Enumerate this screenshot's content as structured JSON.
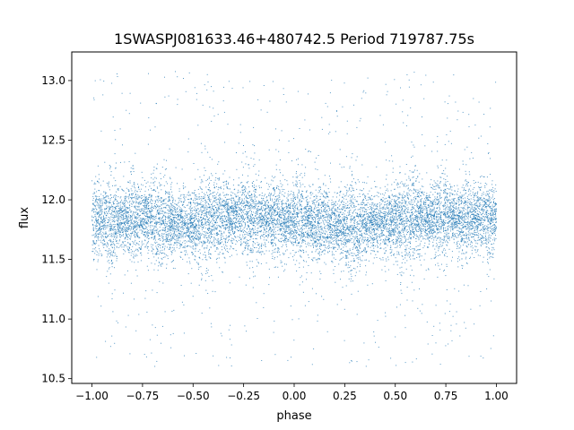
{
  "chart_data": {
    "type": "scatter",
    "title": "1SWASPJ081633.46+480742.5 Period 719787.75s",
    "xlabel": "phase",
    "ylabel": "flux",
    "xlim": [
      -1.1,
      1.1
    ],
    "ylim": [
      10.46,
      13.24
    ],
    "x_ticks": [
      -1.0,
      -0.75,
      -0.5,
      -0.25,
      0.0,
      0.25,
      0.5,
      0.75,
      1.0
    ],
    "x_tick_labels": [
      "−1.00",
      "−0.75",
      "−0.50",
      "−0.25",
      "0.00",
      "0.25",
      "0.50",
      "0.75",
      "1.00"
    ],
    "y_ticks": [
      10.5,
      11.0,
      11.5,
      12.0,
      12.5,
      13.0
    ],
    "y_tick_labels": [
      "10.5",
      "11.0",
      "11.5",
      "12.0",
      "12.5",
      "13.0"
    ],
    "grid": false,
    "legend": "none",
    "marker_color": "#1f77b4",
    "series": [
      {
        "x_range": [
          -1.0,
          1.0
        ],
        "points_per_visible_cloud": "dense",
        "mean_flux_profile": {
          "x": [
            -1.0,
            -0.75,
            -0.5,
            -0.25,
            0.0,
            0.25,
            0.5,
            0.75,
            1.0
          ],
          "y": [
            11.82,
            11.85,
            11.8,
            11.87,
            11.82,
            11.78,
            11.82,
            11.86,
            11.84
          ]
        },
        "core_band": [
          11.55,
          12.1
        ],
        "outer_range": [
          10.6,
          13.08
        ]
      }
    ]
  }
}
